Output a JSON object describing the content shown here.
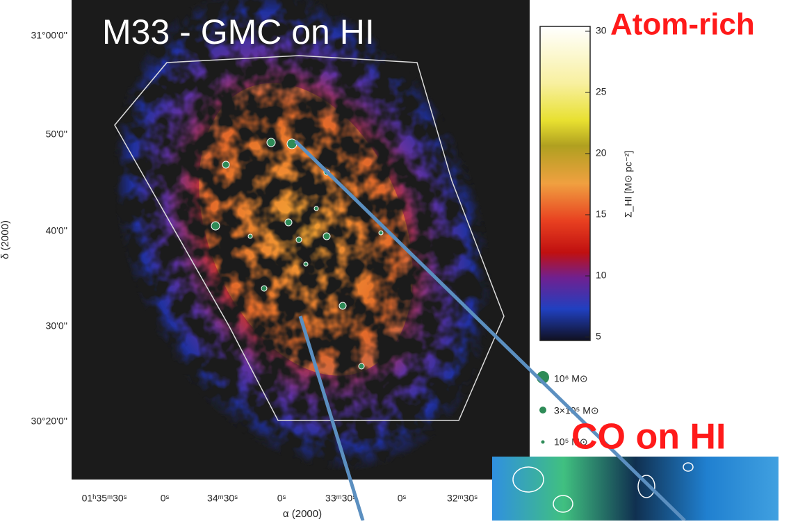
{
  "title": "M33 - GMC on HI",
  "labels": {
    "atom_rich": "Atom-rich",
    "co_on_hi": "CO on HI"
  },
  "map": {
    "y_ticks": [
      "31°00'0''",
      "50'0''",
      "40'0''",
      "30'0''",
      "30°20'0''"
    ],
    "x_ticks": [
      "01ʰ35ᵐ30ˢ",
      "0ˢ",
      "34ᵐ30ˢ",
      "0ˢ",
      "33ᵐ30ˢ",
      "0ˢ",
      "32ᵐ30ˢ"
    ],
    "x_label": "α (2000)",
    "y_label": "δ (2000)"
  },
  "colorbar": {
    "ticks": [
      "30",
      "25",
      "20",
      "15",
      "10",
      "5"
    ],
    "label": "Σ_HI [M⊙ pc⁻²]"
  },
  "legend": [
    "10⁶ M⊙",
    "3×10⁵ M⊙",
    "10⁵ M⊙"
  ]
}
